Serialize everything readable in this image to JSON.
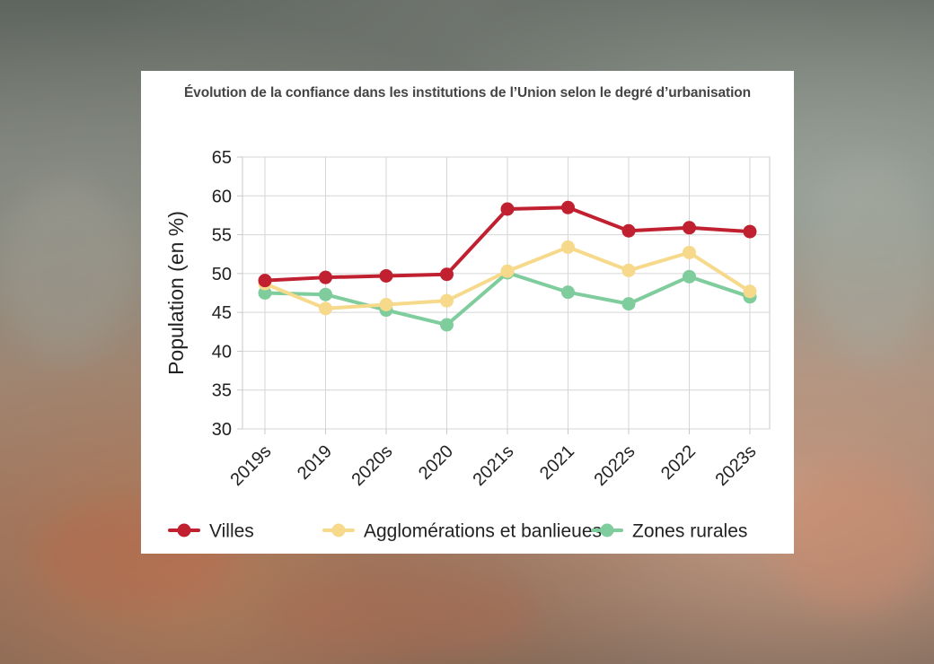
{
  "chart_data": {
    "type": "line",
    "title": "Évolution de la confiance dans les institutions de l’Union selon le degré d’urbanisation",
    "ylabel": "Population (en %)",
    "xlabel": "",
    "ylim": [
      30,
      65
    ],
    "yticks": [
      30,
      35,
      40,
      45,
      50,
      55,
      60,
      65
    ],
    "grid": true,
    "legend_position": "bottom",
    "categories": [
      "2019s",
      "2019",
      "2020s",
      "2020",
      "2021s",
      "2021",
      "2022s",
      "2022",
      "2023s"
    ],
    "series": [
      {
        "name": "Villes",
        "color": "#c0202f",
        "values": [
          49.1,
          49.5,
          49.7,
          49.9,
          58.3,
          58.5,
          55.5,
          55.9,
          55.4
        ]
      },
      {
        "name": "Agglomérations et banlieues",
        "color": "#f6d98a",
        "values": [
          48.7,
          45.5,
          46.0,
          46.5,
          50.3,
          53.4,
          50.4,
          52.7,
          47.7
        ]
      },
      {
        "name": "Zones rurales",
        "color": "#7fcc9c",
        "values": [
          47.5,
          47.3,
          45.3,
          43.4,
          50.1,
          47.6,
          46.1,
          49.6,
          47.0
        ]
      }
    ]
  }
}
